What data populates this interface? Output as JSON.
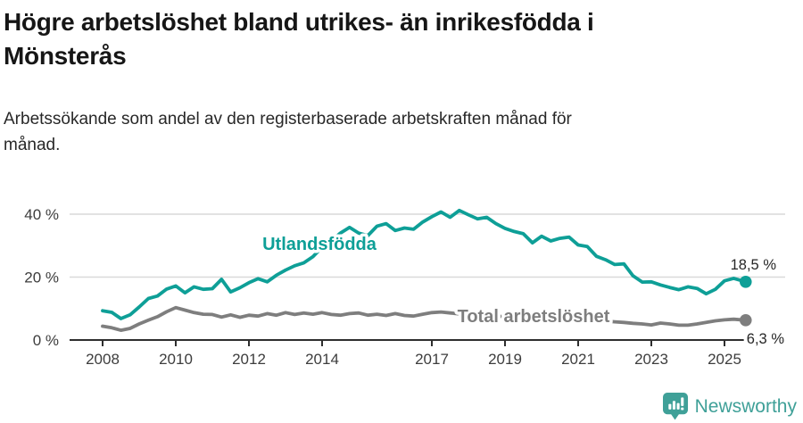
{
  "header": {
    "title_line1": "Högre arbetslöshet bland utrikes- än inrikesfödda i",
    "title_line2": "Mönsterås",
    "subtitle_line1": "Arbetssökande som andel av den registerbaserade arbetskraften månad för",
    "subtitle_line2": "månad."
  },
  "chart_data": {
    "type": "line",
    "title": "Högre arbetslöshet bland utrikes- än inrikesfödda i Mönsterås",
    "xlabel": "",
    "ylabel": "",
    "ylim": [
      0,
      44
    ],
    "x_range": [
      2007.1,
      2026.6
    ],
    "grid": "horizontal",
    "legend_position": "inline-labels",
    "colors": {
      "grid": "#d9d9d9",
      "axis": "#2e2e2e",
      "tick_text": "#3d3d3d",
      "end_label_text": "#262626"
    },
    "y_axis": {
      "ticks": [
        {
          "label": "0 %",
          "value": 0
        },
        {
          "label": "20 %",
          "value": 20
        },
        {
          "label": "40 %",
          "value": 40
        }
      ]
    },
    "x_axis": {
      "ticks": [
        {
          "label": "2008",
          "value": 2008
        },
        {
          "label": "2010",
          "value": 2010
        },
        {
          "label": "2012",
          "value": 2012
        },
        {
          "label": "2014",
          "value": 2014
        },
        {
          "label": "2017",
          "value": 2017
        },
        {
          "label": "2019",
          "value": 2019
        },
        {
          "label": "2021",
          "value": 2021
        },
        {
          "label": "2023",
          "value": 2023
        },
        {
          "label": "2025",
          "value": 2025
        }
      ]
    },
    "x": [
      2008,
      2008.25,
      2008.5,
      2008.75,
      2009,
      2009.25,
      2009.5,
      2009.75,
      2010,
      2010.25,
      2010.5,
      2010.75,
      2011,
      2011.25,
      2011.5,
      2011.75,
      2012,
      2012.25,
      2012.5,
      2012.75,
      2013,
      2013.25,
      2013.5,
      2013.75,
      2014,
      2014.25,
      2014.5,
      2014.75,
      2015,
      2015.25,
      2015.5,
      2015.75,
      2016,
      2016.25,
      2016.5,
      2016.75,
      2017,
      2017.25,
      2017.5,
      2017.75,
      2018,
      2018.25,
      2018.5,
      2018.75,
      2019,
      2019.25,
      2019.5,
      2019.75,
      2020,
      2020.25,
      2020.5,
      2020.75,
      2021,
      2021.25,
      2021.5,
      2021.75,
      2022,
      2022.25,
      2022.5,
      2022.75,
      2023,
      2023.25,
      2023.5,
      2023.75,
      2024,
      2024.25,
      2024.5,
      2024.75,
      2025,
      2025.25,
      2025.58
    ],
    "series": [
      {
        "name": "Total arbetslöshet",
        "color": "#7e7e7e",
        "end_value": 6.3,
        "end_label": "6,3 %",
        "values": [
          4.4,
          3.9,
          3.1,
          3.7,
          5.1,
          6.3,
          7.4,
          9.0,
          10.3,
          9.5,
          8.7,
          8.2,
          8.1,
          7.3,
          8.0,
          7.2,
          7.9,
          7.6,
          8.4,
          7.9,
          8.7,
          8.1,
          8.6,
          8.2,
          8.7,
          8.1,
          7.9,
          8.4,
          8.6,
          7.9,
          8.2,
          7.8,
          8.4,
          7.8,
          7.6,
          8.2,
          8.7,
          8.9,
          8.6,
          8.3,
          8.1,
          7.8,
          8.0,
          7.6,
          7.4,
          7.2,
          7.3,
          7.0,
          7.5,
          7.9,
          7.7,
          7.3,
          7.0,
          6.7,
          6.3,
          6.0,
          5.8,
          5.6,
          5.3,
          5.1,
          4.8,
          5.4,
          5.1,
          4.7,
          4.7,
          5.1,
          5.6,
          6.1,
          6.4,
          6.6,
          6.3
        ]
      },
      {
        "name": "Utlandsfödda",
        "color": "#0e9f97",
        "end_value": 18.5,
        "end_label": "18,5 %",
        "values": [
          9.3,
          8.8,
          6.8,
          8.0,
          10.5,
          13.2,
          14.0,
          16.2,
          17.2,
          15.0,
          16.9,
          16.1,
          16.3,
          19.3,
          15.3,
          16.6,
          18.2,
          19.5,
          18.5,
          20.6,
          22.2,
          23.6,
          24.5,
          26.5,
          29.5,
          31.5,
          34.0,
          35.8,
          34.0,
          33.2,
          36.2,
          37.0,
          34.8,
          35.6,
          35.2,
          37.5,
          39.2,
          40.7,
          39.0,
          41.2,
          39.8,
          38.5,
          39.0,
          37.0,
          35.5,
          34.5,
          33.8,
          30.9,
          33.0,
          31.5,
          32.3,
          32.7,
          30.2,
          29.7,
          26.6,
          25.5,
          24.0,
          24.2,
          20.4,
          18.4,
          18.5,
          17.5,
          16.7,
          16.0,
          16.9,
          16.4,
          14.7,
          16.1,
          18.8,
          19.6,
          18.5
        ]
      }
    ]
  },
  "footer": {
    "brand": "Newsworthy",
    "brand_color": "#3fa098"
  }
}
